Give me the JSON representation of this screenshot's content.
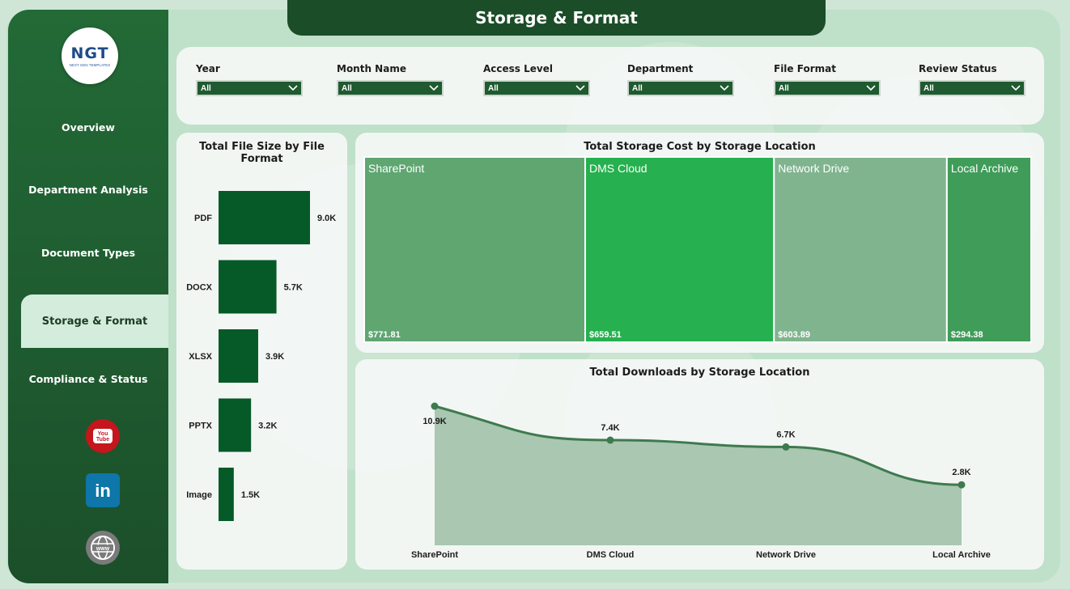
{
  "page_title": "Storage & Format",
  "logo": {
    "main": "NGT",
    "sub": "NEXT GEN TEMPLATES"
  },
  "nav": {
    "items": [
      {
        "label": "Overview"
      },
      {
        "label": "Department Analysis"
      },
      {
        "label": "Document Types"
      },
      {
        "label": "Storage & Format"
      },
      {
        "label": "Compliance & Status"
      }
    ],
    "active_index": 3
  },
  "social": [
    {
      "icon": "youtube-icon",
      "text": "You Tube"
    },
    {
      "icon": "linkedin-icon",
      "text": "in"
    },
    {
      "icon": "globe-icon",
      "text": "www"
    }
  ],
  "filters": [
    {
      "label": "Year",
      "value": "All"
    },
    {
      "label": "Month Name",
      "value": "All"
    },
    {
      "label": "Access Level",
      "value": "All"
    },
    {
      "label": "Department",
      "value": "All"
    },
    {
      "label": "File Format",
      "value": "All"
    },
    {
      "label": "Review Status",
      "value": "All"
    }
  ],
  "colors": {
    "sidebar": "#1f5a30",
    "bar": "#055a28",
    "treemap": [
      "#5fa671",
      "#26b04f",
      "#80b48f",
      "#3f9c59"
    ],
    "area_line": "#3e7a4e",
    "area_fill": "#a9c7b1"
  },
  "chart_data": [
    {
      "type": "bar",
      "orientation": "horizontal",
      "title": "Total File Size by File Format",
      "categories": [
        "PDF",
        "DOCX",
        "XLSX",
        "PPTX",
        "Image"
      ],
      "values": [
        9.0,
        5.7,
        3.9,
        3.2,
        1.5
      ],
      "value_labels": [
        "9.0K",
        "5.7K",
        "3.9K",
        "3.2K",
        "1.5K"
      ],
      "unit": "K"
    },
    {
      "type": "treemap",
      "title": "Total Storage Cost by Storage Location",
      "categories": [
        "SharePoint",
        "DMS Cloud",
        "Network Drive",
        "Local Archive"
      ],
      "values": [
        771.81,
        659.51,
        603.89,
        294.38
      ],
      "value_labels": [
        "$771.81",
        "$659.51",
        "$603.89",
        "$294.38"
      ]
    },
    {
      "type": "area",
      "title": "Total Downloads by Storage Location",
      "categories": [
        "SharePoint",
        "DMS Cloud",
        "Network Drive",
        "Local Archive"
      ],
      "values": [
        10.9,
        7.4,
        6.7,
        2.8
      ],
      "value_labels": [
        "10.9K",
        "7.4K",
        "6.7K",
        "2.8K"
      ],
      "unit": "K"
    }
  ]
}
